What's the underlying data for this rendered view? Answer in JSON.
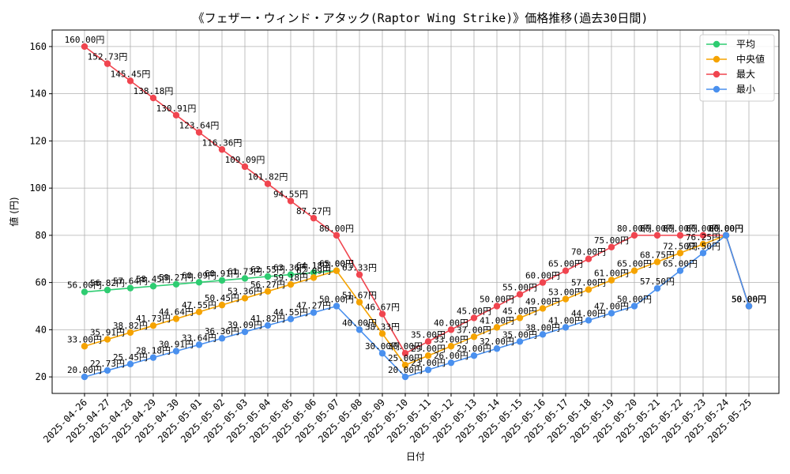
{
  "chart_data": {
    "type": "line",
    "title": "《フェザー・ウィンド・アタック(Raptor Wing Strike)》価格推移(過去30日間)",
    "xlabel": "日付",
    "ylabel": "値 (円)",
    "unit_suffix": "円",
    "ylim": [
      13,
      167
    ],
    "yticks": [
      20,
      40,
      60,
      80,
      100,
      120,
      140,
      160
    ],
    "grid": true,
    "legend_position": "top-right",
    "categories": [
      "2025-04-26",
      "2025-04-27",
      "2025-04-28",
      "2025-04-29",
      "2025-04-30",
      "2025-05-01",
      "2025-05-02",
      "2025-05-03",
      "2025-05-04",
      "2025-05-05",
      "2025-05-06",
      "2025-05-07",
      "2025-05-08",
      "2025-05-09",
      "2025-05-10",
      "2025-05-11",
      "2025-05-12",
      "2025-05-13",
      "2025-05-14",
      "2025-05-15",
      "2025-05-16",
      "2025-05-17",
      "2025-05-18",
      "2025-05-19",
      "2025-05-20",
      "2025-05-21",
      "2025-05-22",
      "2025-05-23",
      "2025-05-24",
      "2025-05-25"
    ],
    "series": [
      {
        "name": "平均",
        "color": "#2ecc71",
        "values": [
          56.0,
          56.82,
          57.64,
          58.45,
          59.27,
          60.09,
          60.91,
          61.73,
          62.55,
          63.36,
          64.18,
          65.0,
          null,
          null,
          null,
          null,
          null,
          null,
          null,
          null,
          null,
          null,
          null,
          null,
          null,
          null,
          null,
          null,
          80.0,
          50.0
        ],
        "labels": [
          "56.00円",
          "56.82円",
          "57.64円",
          "58.45円",
          "59.27円",
          "60.09円",
          "60.91円",
          "61.73円",
          "62.55円",
          "63.36円",
          "64.18円",
          "65.00円",
          "",
          "",
          "",
          "",
          "",
          "",
          "",
          "",
          "",
          "",
          "",
          "",
          "",
          "",
          "",
          "",
          "80.00円",
          "50.00円"
        ]
      },
      {
        "name": "中央値",
        "color": "#f5a300",
        "values": [
          33.0,
          35.91,
          38.82,
          41.73,
          44.64,
          47.55,
          50.45,
          53.36,
          56.27,
          59.18,
          62.09,
          65.0,
          51.67,
          38.33,
          25.0,
          29.0,
          33.0,
          37.0,
          41.0,
          45.0,
          49.0,
          53.0,
          57.0,
          61.0,
          65.0,
          68.75,
          72.5,
          76.25,
          80.0,
          50.0
        ],
        "labels": [
          "33.00円",
          "35.91円",
          "38.82円",
          "41.73円",
          "44.64円",
          "47.55円",
          "50.45円",
          "53.36円",
          "56.27円",
          "59.18円",
          "62.09円",
          "65.00円",
          "51.67円",
          "38.33円",
          "25.00円",
          "29.00円",
          "33.00円",
          "37.00円",
          "41.00円",
          "45.00円",
          "49.00円",
          "53.00円",
          "57.00円",
          "61.00円",
          "65.00円",
          "68.75円",
          "72.50円",
          "76.25円",
          "80.00円",
          "50.00円"
        ]
      },
      {
        "name": "最大",
        "color": "#f0454f",
        "values": [
          160.0,
          152.73,
          145.45,
          138.18,
          130.91,
          123.64,
          116.36,
          109.09,
          101.82,
          94.55,
          87.27,
          80.0,
          63.33,
          46.67,
          30.0,
          35.0,
          40.0,
          45.0,
          50.0,
          55.0,
          60.0,
          65.0,
          70.0,
          75.0,
          80.0,
          80.0,
          80.0,
          80.0,
          80.0,
          50.0
        ],
        "labels": [
          "160.00円",
          "152.73円",
          "145.45円",
          "138.18円",
          "130.91円",
          "123.64円",
          "116.36円",
          "109.09円",
          "101.82円",
          "94.55円",
          "87.27円",
          "80.00円",
          "63.33円",
          "46.67円",
          "30.00円",
          "35.00円",
          "40.00円",
          "45.00円",
          "50.00円",
          "55.00円",
          "60.00円",
          "65.00円",
          "70.00円",
          "75.00円",
          "80.00円",
          "80.00円",
          "80.00円",
          "80.00円",
          "80.00円",
          "50.00円"
        ]
      },
      {
        "name": "最小",
        "color": "#4a90ee",
        "values": [
          20.0,
          22.73,
          25.45,
          28.18,
          30.91,
          33.64,
          36.36,
          39.09,
          41.82,
          44.55,
          47.27,
          50.0,
          40.0,
          30.0,
          20.0,
          23.0,
          26.0,
          29.0,
          32.0,
          35.0,
          38.0,
          41.0,
          44.0,
          47.0,
          50.0,
          57.5,
          65.0,
          72.5,
          80.0,
          50.0
        ],
        "labels": [
          "20.00円",
          "22.73円",
          "25.45円",
          "28.18円",
          "30.91円",
          "33.64円",
          "36.36円",
          "39.09円",
          "41.82円",
          "44.55円",
          "47.27円",
          "50.00円",
          "40.00円",
          "30.00円",
          "20.00円",
          "23.00円",
          "26.00円",
          "29.00円",
          "32.00円",
          "35.00円",
          "38.00円",
          "41.00円",
          "44.00円",
          "47.00円",
          "50.00円",
          "57.50円",
          "65.00円",
          "72.50円",
          "80.00円",
          "50.00円"
        ]
      }
    ]
  }
}
